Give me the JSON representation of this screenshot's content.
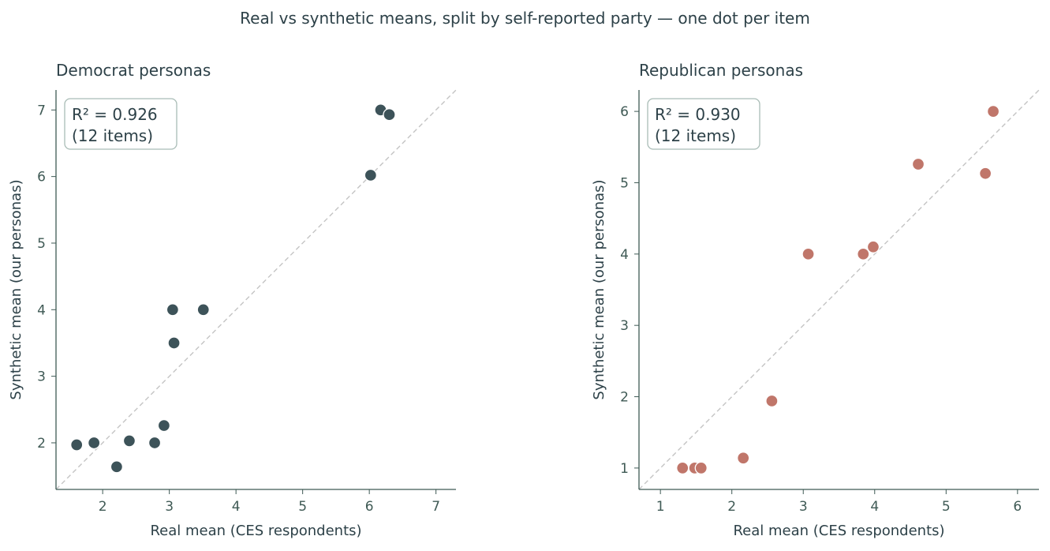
{
  "figure_title": "Real vs synthetic means, split by self-reported party — one dot per item",
  "chart_data": [
    {
      "type": "scatter",
      "title": "Democrat personas",
      "xlabel": "Real mean (CES respondents)",
      "ylabel": "Synthetic mean (our personas)",
      "xlim": [
        1.3,
        7.3
      ],
      "ylim": [
        1.3,
        7.3
      ],
      "xticks": [
        2,
        3,
        4,
        5,
        6,
        7
      ],
      "yticks": [
        2,
        3,
        4,
        5,
        6,
        7
      ],
      "reference_line": "y = x (dashed)",
      "annotation": [
        "R² = 0.926",
        "(12 items)"
      ],
      "color": "#3d5359",
      "points": [
        {
          "x": 1.61,
          "y": 1.97
        },
        {
          "x": 1.87,
          "y": 2.0
        },
        {
          "x": 2.21,
          "y": 1.64
        },
        {
          "x": 2.4,
          "y": 2.03
        },
        {
          "x": 2.78,
          "y": 2.0
        },
        {
          "x": 2.92,
          "y": 2.26
        },
        {
          "x": 3.05,
          "y": 4.0
        },
        {
          "x": 3.07,
          "y": 3.5
        },
        {
          "x": 3.51,
          "y": 4.0
        },
        {
          "x": 6.02,
          "y": 6.02
        },
        {
          "x": 6.17,
          "y": 7.0
        },
        {
          "x": 6.3,
          "y": 6.93
        }
      ]
    },
    {
      "type": "scatter",
      "title": "Republican personas",
      "xlabel": "Real mean (CES respondents)",
      "ylabel": "Synthetic mean (our personas)",
      "xlim": [
        0.7,
        6.3
      ],
      "ylim": [
        0.7,
        6.3
      ],
      "xticks": [
        1,
        2,
        3,
        4,
        5,
        6
      ],
      "yticks": [
        1,
        2,
        3,
        4,
        5,
        6
      ],
      "reference_line": "y = x (dashed)",
      "annotation": [
        "R² = 0.930",
        "(12 items)"
      ],
      "color": "#c0766a",
      "points": [
        {
          "x": 1.31,
          "y": 1.0
        },
        {
          "x": 1.48,
          "y": 1.0
        },
        {
          "x": 1.57,
          "y": 1.0
        },
        {
          "x": 2.16,
          "y": 1.14
        },
        {
          "x": 2.56,
          "y": 1.94
        },
        {
          "x": 3.07,
          "y": 4.0
        },
        {
          "x": 3.83,
          "y": 4.0
        },
        {
          "x": 3.84,
          "y": 4.0
        },
        {
          "x": 3.98,
          "y": 4.1
        },
        {
          "x": 4.61,
          "y": 5.26
        },
        {
          "x": 5.55,
          "y": 5.13
        },
        {
          "x": 5.66,
          "y": 6.0
        }
      ]
    }
  ]
}
